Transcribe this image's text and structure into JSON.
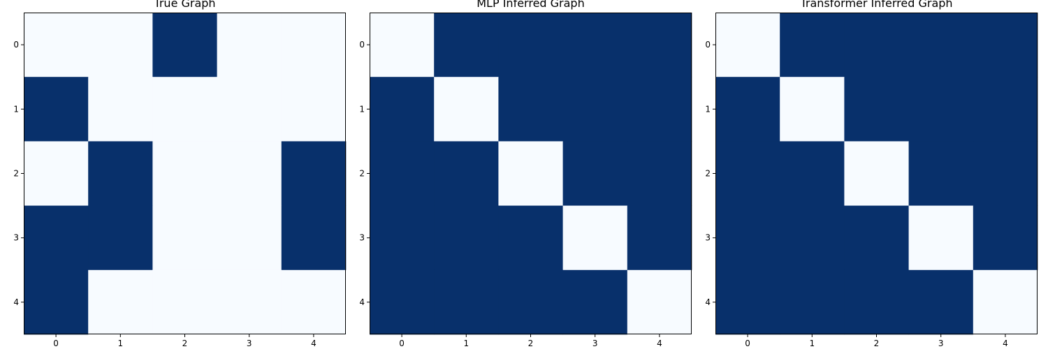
{
  "chart_data": [
    {
      "type": "heatmap",
      "title": "True Graph",
      "x_ticks": [
        "0",
        "1",
        "2",
        "3",
        "4"
      ],
      "y_ticks": [
        "0",
        "1",
        "2",
        "3",
        "4"
      ],
      "colormap": "Blues",
      "color_low": "#f7fbff",
      "color_high": "#08306b",
      "value_range": [
        0,
        1
      ],
      "matrix": [
        [
          0,
          0,
          1,
          0,
          0
        ],
        [
          1,
          0,
          0,
          0,
          0
        ],
        [
          0,
          1,
          0,
          0,
          1
        ],
        [
          1,
          1,
          0,
          0,
          1
        ],
        [
          1,
          0,
          0,
          0,
          0
        ]
      ]
    },
    {
      "type": "heatmap",
      "title": "MLP Inferred Graph",
      "x_ticks": [
        "0",
        "1",
        "2",
        "3",
        "4"
      ],
      "y_ticks": [
        "0",
        "1",
        "2",
        "3",
        "4"
      ],
      "colormap": "Blues",
      "color_low": "#f7fbff",
      "color_high": "#08306b",
      "value_range": [
        0,
        1
      ],
      "matrix": [
        [
          0,
          1,
          1,
          1,
          1
        ],
        [
          1,
          0,
          1,
          1,
          1
        ],
        [
          1,
          1,
          0,
          1,
          1
        ],
        [
          1,
          1,
          1,
          0,
          1
        ],
        [
          1,
          1,
          1,
          1,
          0
        ]
      ]
    },
    {
      "type": "heatmap",
      "title": "Transformer Inferred Graph",
      "x_ticks": [
        "0",
        "1",
        "2",
        "3",
        "4"
      ],
      "y_ticks": [
        "0",
        "1",
        "2",
        "3",
        "4"
      ],
      "colormap": "Blues",
      "color_low": "#f7fbff",
      "color_high": "#08306b",
      "value_range": [
        0,
        1
      ],
      "matrix": [
        [
          0,
          1,
          1,
          1,
          1
        ],
        [
          1,
          0,
          1,
          1,
          1
        ],
        [
          1,
          1,
          0,
          1,
          1
        ],
        [
          1,
          1,
          1,
          0,
          1
        ],
        [
          1,
          1,
          1,
          1,
          0
        ]
      ]
    }
  ]
}
